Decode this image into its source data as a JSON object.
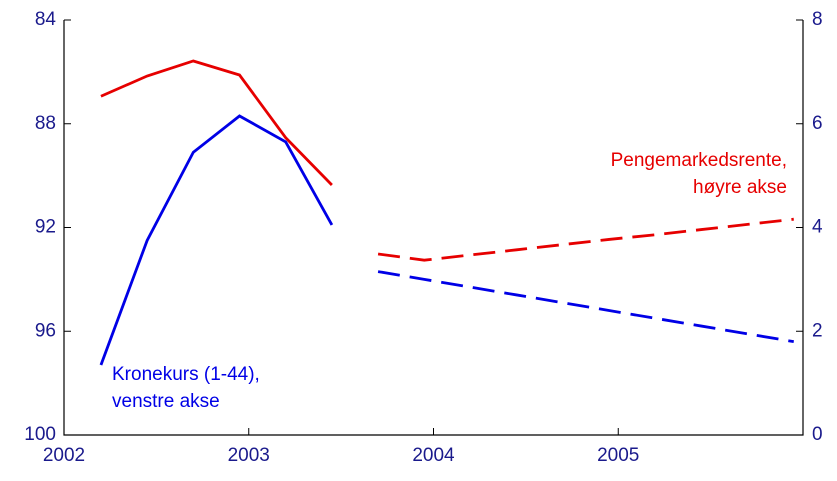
{
  "chart_data": {
    "type": "line",
    "x": [
      2002.2,
      2002.45,
      2002.7,
      2002.95,
      2003.2,
      2003.45,
      2003.7,
      2003.95,
      2004.2,
      2004.45,
      2004.7,
      2004.95,
      2005.2,
      2005.45,
      2005.7,
      2005.95
    ],
    "forecast_start": 5,
    "series": [
      {
        "name": "Kronekurs (1-44), venstre akse",
        "color": "#0000e6",
        "axis": "y",
        "label_lines": [
          "Kronekurs (1-44),",
          "venstre akse"
        ],
        "values": [
          97.3,
          92.5,
          89.1,
          87.7,
          88.7,
          91.9,
          93.7,
          94.0,
          94.3,
          94.6,
          94.9,
          95.2,
          95.5,
          95.8,
          96.1,
          96.4
        ]
      },
      {
        "name": "Pengemarkedsrente, høyre akse",
        "color": "#e60000",
        "axis": "y2",
        "label_lines": [
          "Pengemarkedsrente,",
          "høyre akse"
        ],
        "values": [
          6.53,
          6.92,
          7.21,
          6.94,
          5.73,
          4.82,
          3.49,
          3.37,
          3.47,
          3.57,
          3.67,
          3.77,
          3.86,
          3.96,
          4.06,
          4.16
        ]
      }
    ],
    "xlim": [
      2002,
      2006
    ],
    "xticks": [
      2002,
      2003,
      2004,
      2005
    ],
    "ylim": [
      100,
      84
    ],
    "yticks": [
      84,
      88,
      92,
      96,
      100
    ],
    "y2lim": [
      0,
      8
    ],
    "y2ticks": [
      0,
      2,
      4,
      6,
      8
    ]
  }
}
